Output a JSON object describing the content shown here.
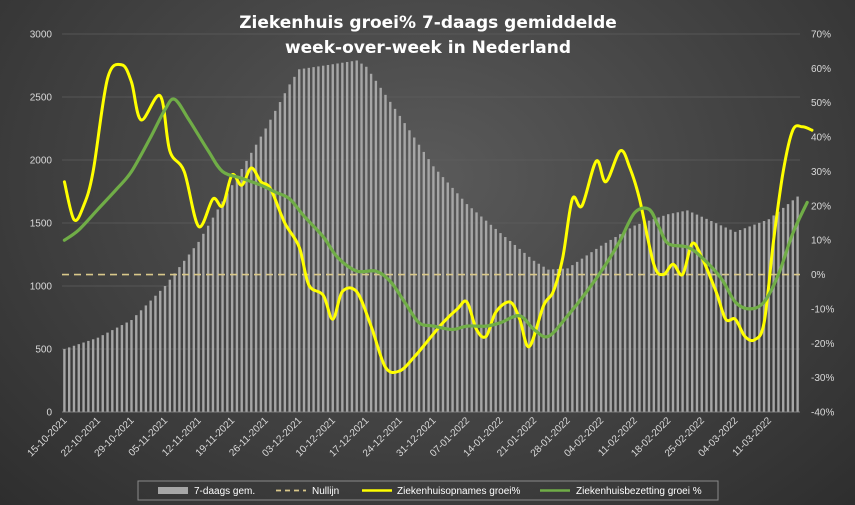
{
  "chart_data": {
    "type": "bar",
    "title_line1": "Ziekenhuis groei% 7-daags gemiddelde",
    "title_line2": "week-over-week in Nederland",
    "y_left": {
      "min": 0,
      "max": 3000,
      "ticks": [
        0,
        500,
        1000,
        1500,
        2000,
        2500,
        3000
      ]
    },
    "y_right": {
      "min": -40,
      "max": 70,
      "ticks": [
        "-40%",
        "-30%",
        "-20%",
        "-10%",
        "0%",
        "10%",
        "20%",
        "30%",
        "40%",
        "50%",
        "60%",
        "70%"
      ]
    },
    "x_start_date": "15-10-2021",
    "x_end_date": "17-03-2022",
    "x_tick_labels": [
      "15-10-2021",
      "22-10-2021",
      "29-10-2021",
      "05-11-2021",
      "12-11-2021",
      "19-11-2021",
      "26-11-2021",
      "03-12-2021",
      "10-12-2021",
      "17-12-2021",
      "24-12-2021",
      "31-12-2021",
      "07-01-2022",
      "14-01-2022",
      "21-01-2022",
      "28-01-2022",
      "04-02-2022",
      "11-02-2022",
      "18-02-2022",
      "25-02-2022",
      "04-03-2022",
      "11-03-2022"
    ],
    "bars_name": "7-daags gem.",
    "bars_color": "#a6a6a6",
    "bars_points": [
      [
        "15-10-2021",
        500
      ],
      [
        "22-10-2021",
        590
      ],
      [
        "29-10-2021",
        730
      ],
      [
        "05-11-2021",
        1000
      ],
      [
        "12-11-2021",
        1350
      ],
      [
        "19-11-2021",
        1800
      ],
      [
        "26-11-2021",
        2250
      ],
      [
        "01-12-2021",
        2600
      ],
      [
        "03-12-2021",
        2720
      ],
      [
        "10-12-2021",
        2760
      ],
      [
        "15-12-2021",
        2790
      ],
      [
        "17-12-2021",
        2740
      ],
      [
        "24-12-2021",
        2350
      ],
      [
        "31-12-2021",
        1950
      ],
      [
        "07-01-2022",
        1650
      ],
      [
        "14-01-2022",
        1420
      ],
      [
        "21-01-2022",
        1200
      ],
      [
        "24-01-2022",
        1130
      ],
      [
        "28-01-2022",
        1140
      ],
      [
        "04-02-2022",
        1320
      ],
      [
        "11-02-2022",
        1480
      ],
      [
        "18-02-2022",
        1570
      ],
      [
        "22-02-2022",
        1600
      ],
      [
        "25-02-2022",
        1550
      ],
      [
        "04-03-2022",
        1430
      ],
      [
        "11-03-2022",
        1530
      ],
      [
        "17-03-2022",
        1710
      ]
    ],
    "nullijn": {
      "name": "Nullijn",
      "value": 0,
      "color": "#d9c88a"
    },
    "series": [
      {
        "name": "Ziekenhuisopnames groei%",
        "color": "#ffff00",
        "points": [
          [
            "15-10-2021",
            27
          ],
          [
            "17-10-2021",
            16
          ],
          [
            "19-10-2021",
            20
          ],
          [
            "21-10-2021",
            30
          ],
          [
            "24-10-2021",
            57
          ],
          [
            "27-10-2021",
            61
          ],
          [
            "29-10-2021",
            56
          ],
          [
            "31-10-2021",
            45
          ],
          [
            "04-11-2021",
            52
          ],
          [
            "06-11-2021",
            36
          ],
          [
            "09-11-2021",
            30
          ],
          [
            "12-11-2021",
            14
          ],
          [
            "15-11-2021",
            22
          ],
          [
            "17-11-2021",
            20
          ],
          [
            "19-11-2021",
            29
          ],
          [
            "21-11-2021",
            26
          ],
          [
            "23-11-2021",
            31
          ],
          [
            "25-11-2021",
            27
          ],
          [
            "27-11-2021",
            25
          ],
          [
            "30-11-2021",
            15
          ],
          [
            "03-12-2021",
            8
          ],
          [
            "05-12-2021",
            -3
          ],
          [
            "08-12-2021",
            -6
          ],
          [
            "10-12-2021",
            -13
          ],
          [
            "12-12-2021",
            -5
          ],
          [
            "15-12-2021",
            -5
          ],
          [
            "18-12-2021",
            -15
          ],
          [
            "21-12-2021",
            -27
          ],
          [
            "24-12-2021",
            -28
          ],
          [
            "27-12-2021",
            -24
          ],
          [
            "30-12-2021",
            -19
          ],
          [
            "02-01-2022",
            -14
          ],
          [
            "05-01-2022",
            -10
          ],
          [
            "07-01-2022",
            -8
          ],
          [
            "09-01-2022",
            -16
          ],
          [
            "11-01-2022",
            -18
          ],
          [
            "13-01-2022",
            -11
          ],
          [
            "16-01-2022",
            -8
          ],
          [
            "18-01-2022",
            -13
          ],
          [
            "20-01-2022",
            -21
          ],
          [
            "23-01-2022",
            -9
          ],
          [
            "25-01-2022",
            -5
          ],
          [
            "27-01-2022",
            5
          ],
          [
            "29-01-2022",
            22
          ],
          [
            "31-01-2022",
            20
          ],
          [
            "03-02-2022",
            33
          ],
          [
            "05-02-2022",
            27
          ],
          [
            "08-02-2022",
            36
          ],
          [
            "10-02-2022",
            31
          ],
          [
            "12-02-2022",
            22
          ],
          [
            "15-02-2022",
            3
          ],
          [
            "17-02-2022",
            0
          ],
          [
            "19-02-2022",
            3
          ],
          [
            "21-02-2022",
            0
          ],
          [
            "23-02-2022",
            9
          ],
          [
            "25-02-2022",
            5
          ],
          [
            "28-02-2022",
            -5
          ],
          [
            "02-03-2022",
            -13
          ],
          [
            "04-03-2022",
            -13
          ],
          [
            "06-03-2022",
            -18
          ],
          [
            "08-03-2022",
            -19
          ],
          [
            "10-03-2022",
            -14
          ],
          [
            "12-03-2022",
            10
          ],
          [
            "14-03-2022",
            30
          ],
          [
            "16-03-2022",
            42
          ],
          [
            "18-03-2022",
            43
          ],
          [
            "20-03-2022",
            42
          ]
        ]
      },
      {
        "name": "Ziekenhuisbezetting groei %",
        "color": "#70ad47",
        "points": [
          [
            "15-10-2021",
            10
          ],
          [
            "18-10-2021",
            13
          ],
          [
            "22-10-2021",
            19
          ],
          [
            "26-10-2021",
            25
          ],
          [
            "29-10-2021",
            30
          ],
          [
            "02-11-2021",
            40
          ],
          [
            "05-11-2021",
            48
          ],
          [
            "07-11-2021",
            51
          ],
          [
            "10-11-2021",
            45
          ],
          [
            "14-11-2021",
            36
          ],
          [
            "17-11-2021",
            30
          ],
          [
            "21-11-2021",
            28
          ],
          [
            "25-11-2021",
            26
          ],
          [
            "28-11-2021",
            24
          ],
          [
            "01-12-2021",
            22
          ],
          [
            "04-12-2021",
            17
          ],
          [
            "08-12-2021",
            11
          ],
          [
            "11-12-2021",
            5
          ],
          [
            "15-12-2021",
            1
          ],
          [
            "19-12-2021",
            1
          ],
          [
            "22-12-2021",
            -2
          ],
          [
            "25-12-2021",
            -8
          ],
          [
            "28-12-2021",
            -14
          ],
          [
            "31-12-2021",
            -15
          ],
          [
            "04-01-2022",
            -16
          ],
          [
            "07-01-2022",
            -15
          ],
          [
            "11-01-2022",
            -15
          ],
          [
            "14-01-2022",
            -14
          ],
          [
            "18-01-2022",
            -12
          ],
          [
            "21-01-2022",
            -16
          ],
          [
            "24-01-2022",
            -18
          ],
          [
            "28-01-2022",
            -12
          ],
          [
            "01-02-2022",
            -5
          ],
          [
            "05-02-2022",
            3
          ],
          [
            "08-02-2022",
            10
          ],
          [
            "11-02-2022",
            18
          ],
          [
            "14-02-2022",
            19
          ],
          [
            "16-02-2022",
            14
          ],
          [
            "18-02-2022",
            9
          ],
          [
            "22-02-2022",
            8
          ],
          [
            "25-02-2022",
            5
          ],
          [
            "01-03-2022",
            -1
          ],
          [
            "04-03-2022",
            -8
          ],
          [
            "07-03-2022",
            -10
          ],
          [
            "10-03-2022",
            -8
          ],
          [
            "13-03-2022",
            0
          ],
          [
            "16-03-2022",
            12
          ],
          [
            "19-03-2022",
            21
          ]
        ]
      }
    ],
    "legend": {
      "position": "bottom",
      "items": [
        "7-daags gem.",
        "Nullijn",
        "Ziekenhuisopnames groei%",
        "Ziekenhuisbezetting groei %"
      ]
    }
  }
}
